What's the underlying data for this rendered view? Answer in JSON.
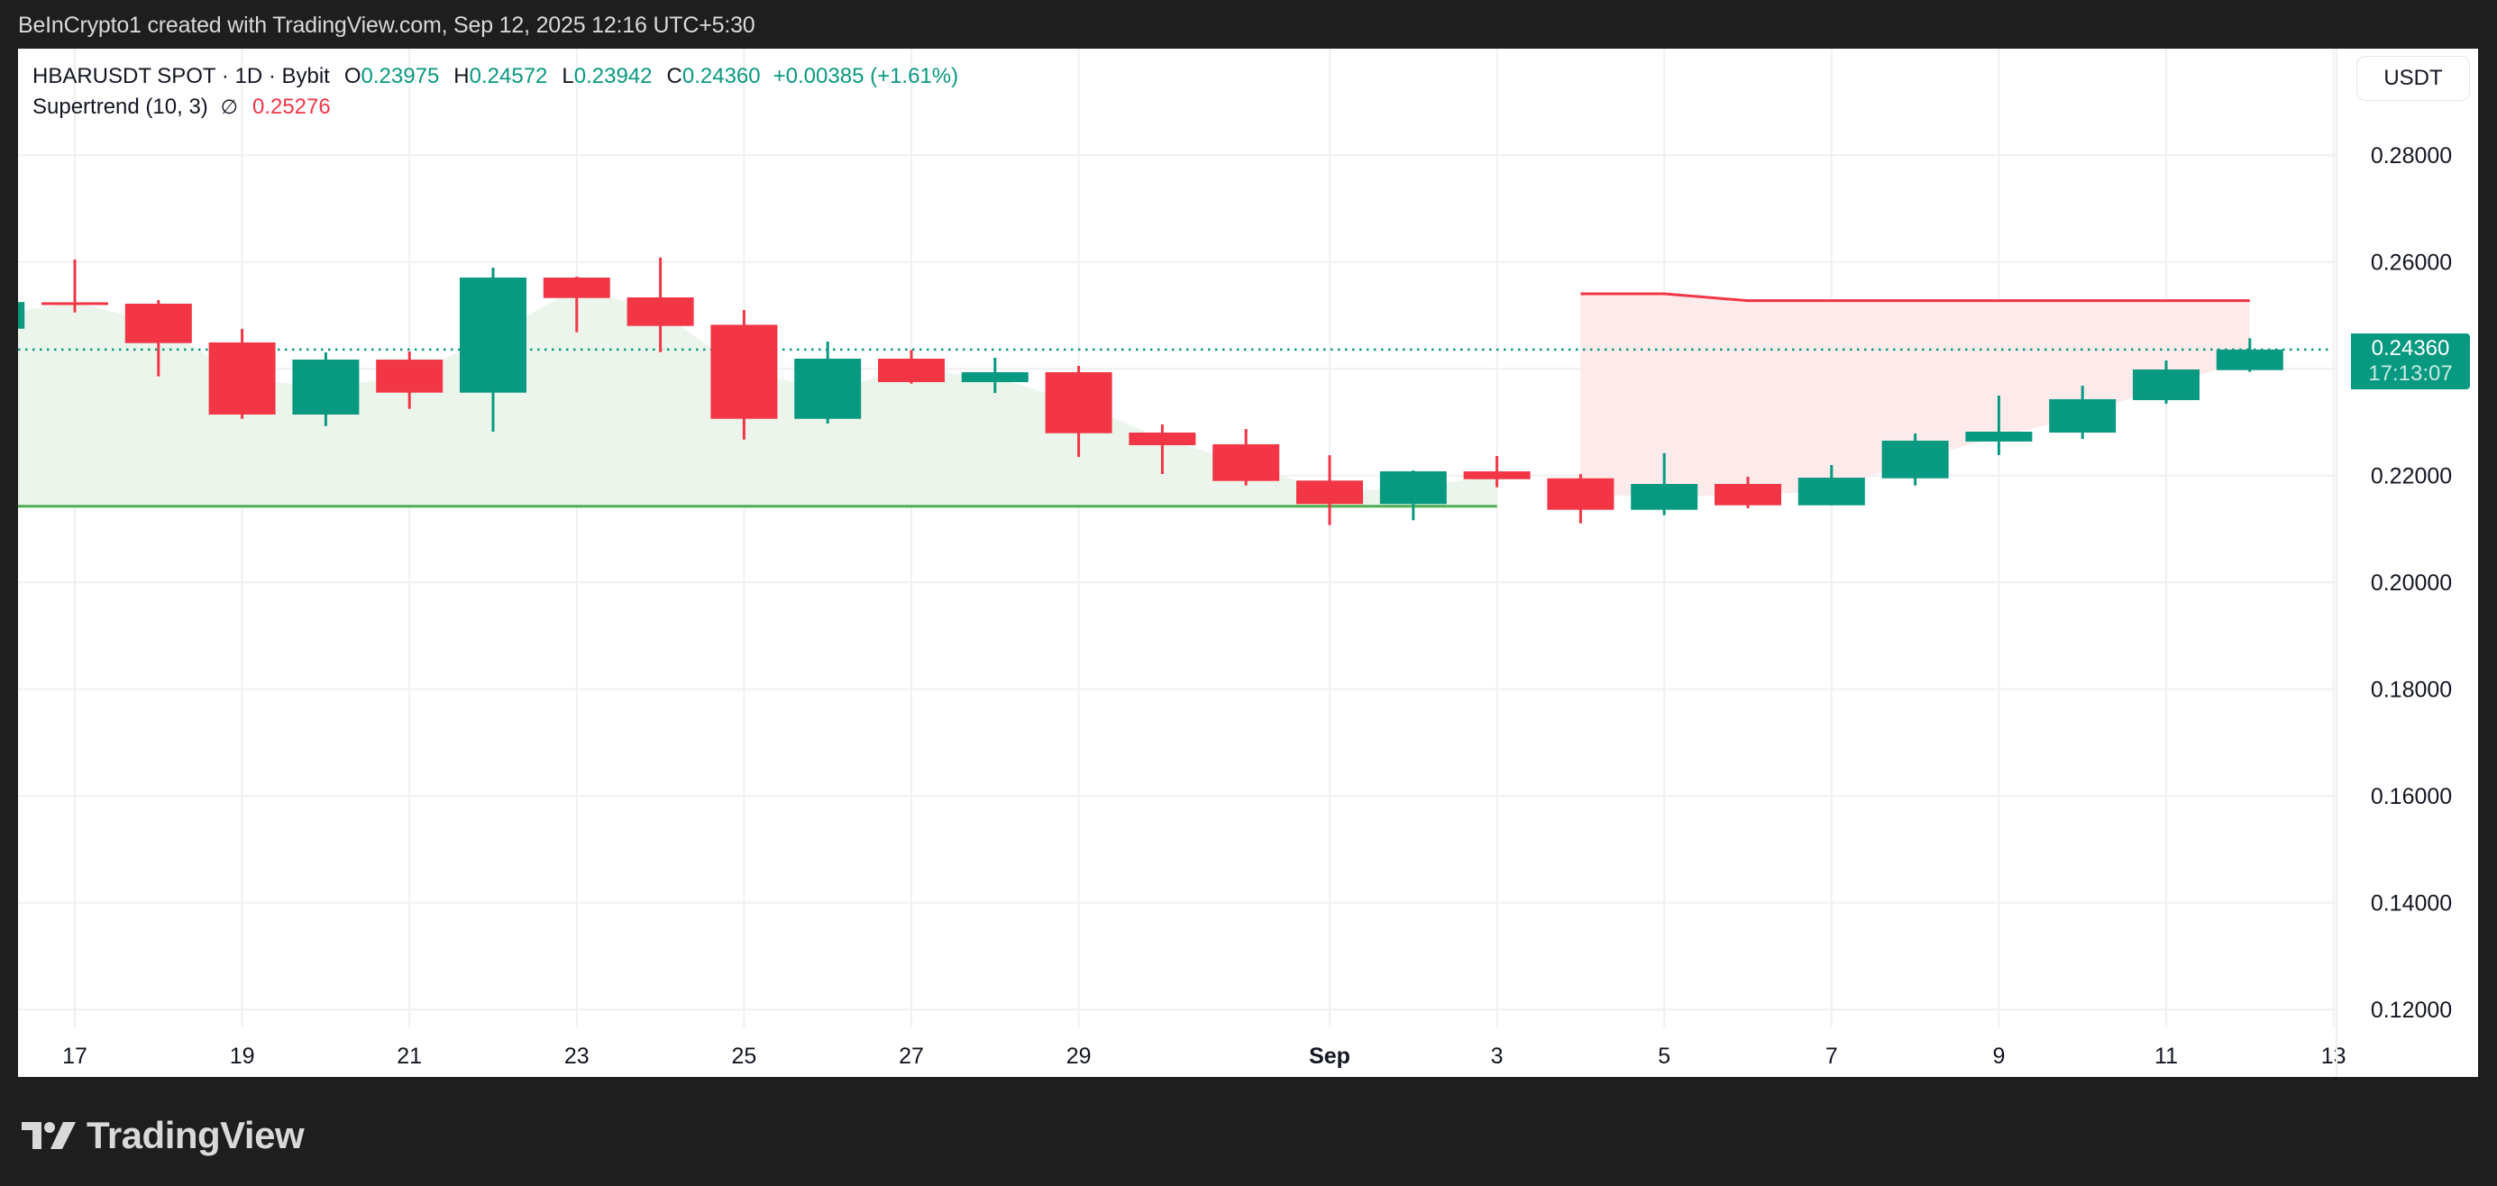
{
  "caption": "BeInCrypto1 created with TradingView.com, Sep 12, 2025 12:16 UTC+5:30",
  "legend": {
    "symbol": "HBARUSDT SPOT · 1D · Bybit",
    "open_label": "O",
    "open": "0.23975",
    "high_label": "H",
    "high": "0.24572",
    "low_label": "L",
    "low": "0.23942",
    "close_label": "C",
    "close": "0.24360",
    "change": "+0.00385 (+1.61%)",
    "indicator": "Supertrend (10, 3)",
    "indicator_icon": "∅",
    "indicator_value": "0.25276"
  },
  "currency_button": "USDT",
  "last_price_tag": {
    "price": "0.24360",
    "countdown": "17:13:07"
  },
  "logo_text": "TradingView",
  "colors": {
    "up": "#089981",
    "down": "#f23645",
    "st_up": "#4caf50",
    "st_down": "#f23645",
    "fill_up": "#ebf5ec",
    "fill_down": "#fdebec",
    "grid": "#f0f0f0",
    "text": "#131722"
  },
  "chart_data": {
    "type": "candlestick",
    "title": "HBARUSDT SPOT · 1D · Bybit",
    "ylabel": "USDT",
    "ylim": [
      0.1135,
      0.2955
    ],
    "y_ticks": [
      "0.28000",
      "0.26000",
      "0.24000",
      "0.22000",
      "0.20000",
      "0.18000",
      "0.16000",
      "0.14000",
      "0.12000"
    ],
    "x_ticks": [
      {
        "label": "17",
        "day": "2025-08-17"
      },
      {
        "label": "19",
        "day": "2025-08-19"
      },
      {
        "label": "21",
        "day": "2025-08-21"
      },
      {
        "label": "23",
        "day": "2025-08-23"
      },
      {
        "label": "25",
        "day": "2025-08-25"
      },
      {
        "label": "27",
        "day": "2025-08-27"
      },
      {
        "label": "29",
        "day": "2025-08-29"
      },
      {
        "label": "Sep",
        "day": "2025-09-01",
        "bold": true
      },
      {
        "label": "3",
        "day": "2025-09-03"
      },
      {
        "label": "5",
        "day": "2025-09-05"
      },
      {
        "label": "7",
        "day": "2025-09-07"
      },
      {
        "label": "9",
        "day": "2025-09-09"
      },
      {
        "label": "11",
        "day": "2025-09-11"
      },
      {
        "label": "13",
        "day": "2025-09-13"
      }
    ],
    "grid": true,
    "candles": [
      {
        "date": "2025-08-16",
        "o": 0.2475,
        "h": 0.2532,
        "l": 0.2455,
        "c": 0.2525
      },
      {
        "date": "2025-08-17",
        "o": 0.25245,
        "h": 0.26045,
        "l": 0.25055,
        "c": 0.2524
      },
      {
        "date": "2025-08-18",
        "o": 0.25219,
        "h": 0.25287,
        "l": 0.23857,
        "c": 0.24481
      },
      {
        "date": "2025-08-19",
        "o": 0.24493,
        "h": 0.24746,
        "l": 0.23063,
        "c": 0.23143
      },
      {
        "date": "2025-08-20",
        "o": 0.23143,
        "h": 0.24307,
        "l": 0.22928,
        "c": 0.24172
      },
      {
        "date": "2025-08-21",
        "o": 0.24172,
        "h": 0.24324,
        "l": 0.23249,
        "c": 0.23553
      },
      {
        "date": "2025-08-22",
        "o": 0.23553,
        "h": 0.25894,
        "l": 0.22822,
        "c": 0.25708
      },
      {
        "date": "2025-08-23",
        "o": 0.25708,
        "h": 0.25725,
        "l": 0.24684,
        "c": 0.25325
      },
      {
        "date": "2025-08-24",
        "o": 0.25337,
        "h": 0.26084,
        "l": 0.24312,
        "c": 0.24802
      },
      {
        "date": "2025-08-25",
        "o": 0.24824,
        "h": 0.251,
        "l": 0.22675,
        "c": 0.23063
      },
      {
        "date": "2025-08-26",
        "o": 0.23063,
        "h": 0.2451,
        "l": 0.22974,
        "c": 0.24189
      },
      {
        "date": "2025-08-27",
        "o": 0.24189,
        "h": 0.24353,
        "l": 0.23722,
        "c": 0.2375
      },
      {
        "date": "2025-08-28",
        "o": 0.2375,
        "h": 0.24206,
        "l": 0.23547,
        "c": 0.23936
      },
      {
        "date": "2025-08-29",
        "o": 0.23936,
        "h": 0.24054,
        "l": 0.22349,
        "c": 0.22793
      },
      {
        "date": "2025-08-30",
        "o": 0.22805,
        "h": 0.22957,
        "l": 0.22029,
        "c": 0.22569
      },
      {
        "date": "2025-08-31",
        "o": 0.22586,
        "h": 0.22873,
        "l": 0.21815,
        "c": 0.21899
      },
      {
        "date": "2025-09-01",
        "o": 0.21906,
        "h": 0.22381,
        "l": 0.21072,
        "c": 0.21467
      },
      {
        "date": "2025-09-02",
        "o": 0.21467,
        "h": 0.22096,
        "l": 0.21163,
        "c": 0.22079
      },
      {
        "date": "2025-09-03",
        "o": 0.22079,
        "h": 0.22366,
        "l": 0.21781,
        "c": 0.21932
      },
      {
        "date": "2025-09-04",
        "o": 0.21949,
        "h": 0.22029,
        "l": 0.21106,
        "c": 0.21359
      },
      {
        "date": "2025-09-05",
        "o": 0.21359,
        "h": 0.22422,
        "l": 0.21257,
        "c": 0.21843
      },
      {
        "date": "2025-09-06",
        "o": 0.21843,
        "h": 0.21978,
        "l": 0.21387,
        "c": 0.21443
      },
      {
        "date": "2025-09-07",
        "o": 0.21443,
        "h": 0.22198,
        "l": 0.21443,
        "c": 0.21961
      },
      {
        "date": "2025-09-08",
        "o": 0.21949,
        "h": 0.22789,
        "l": 0.21814,
        "c": 0.22654
      },
      {
        "date": "2025-09-09",
        "o": 0.22637,
        "h": 0.23496,
        "l": 0.22383,
        "c": 0.22822
      },
      {
        "date": "2025-09-10",
        "o": 0.22805,
        "h": 0.23683,
        "l": 0.22687,
        "c": 0.2343
      },
      {
        "date": "2025-09-11",
        "o": 0.23413,
        "h": 0.24156,
        "l": 0.23346,
        "c": 0.23987
      },
      {
        "date": "2025-09-12",
        "o": 0.23975,
        "h": 0.24572,
        "l": 0.23942,
        "c": 0.2436
      }
    ],
    "supertrend": {
      "params": "(10, 3)",
      "up_segment": {
        "from": "2025-08-16",
        "to": "2025-09-03",
        "value": 0.21426
      },
      "down_segment": [
        {
          "date": "2025-09-04",
          "value": 0.25404
        },
        {
          "date": "2025-09-05",
          "value": 0.25404
        },
        {
          "date": "2025-09-06",
          "value": 0.25276
        },
        {
          "date": "2025-09-12",
          "value": 0.25276
        }
      ],
      "current_value": 0.25276
    },
    "last_price_line": 0.2436
  }
}
